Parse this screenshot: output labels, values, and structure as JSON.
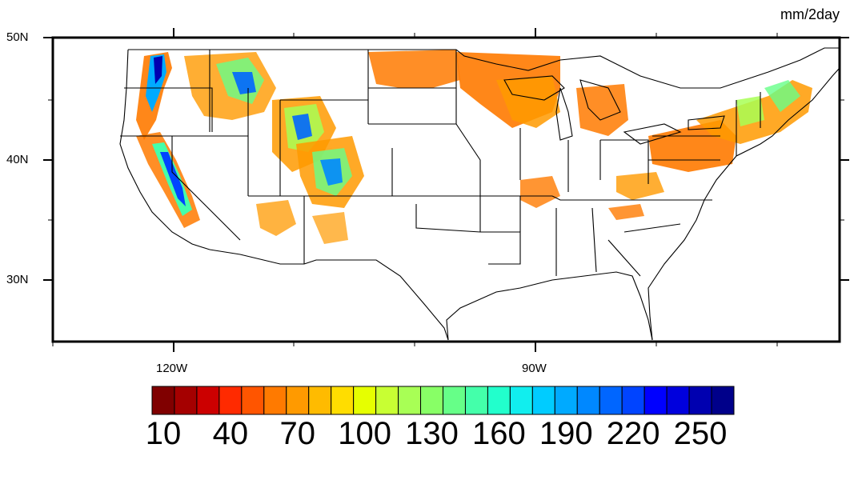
{
  "unit_label": "mm/2day",
  "lat_labels": [
    "50N",
    "40N",
    "30N"
  ],
  "lon_labels": [
    "120W",
    "90W"
  ],
  "colorbar": {
    "tick_labels": [
      "10",
      "40",
      "70",
      "100",
      "130",
      "160",
      "190",
      "220",
      "250"
    ],
    "colors": [
      "#800000",
      "#a50000",
      "#cc0000",
      "#ff2a00",
      "#ff5500",
      "#ff7a00",
      "#ff9a00",
      "#ffbb00",
      "#ffdd00",
      "#e6ff00",
      "#c8ff33",
      "#a8ff55",
      "#88ff66",
      "#66ff88",
      "#44ffaa",
      "#22ffcc",
      "#11eeee",
      "#00ccff",
      "#00aaff",
      "#0088ff",
      "#0066ff",
      "#0044ff",
      "#0000ff",
      "#0000dd",
      "#0000b0",
      "#00008a"
    ]
  },
  "map": {
    "lat_range": [
      25,
      50
    ],
    "lon_range": [
      -130,
      -65
    ],
    "description_colors": {
      "land_outline": "#000000",
      "background": "#ffffff"
    }
  }
}
